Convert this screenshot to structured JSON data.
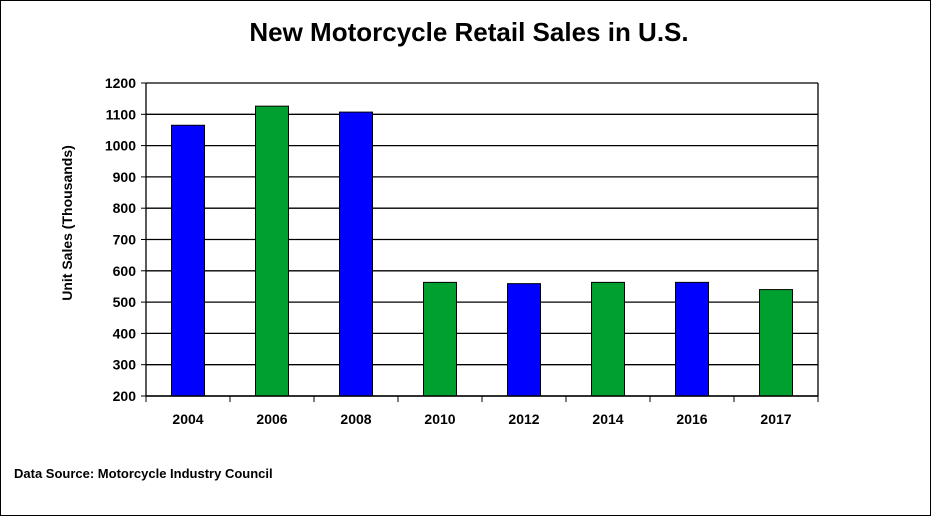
{
  "chart_data": {
    "type": "bar",
    "title": "New Motorcycle Retail Sales in U.S.",
    "xlabel": "",
    "ylabel": "Unit Sales (Thousands)",
    "categories": [
      "2004",
      "2006",
      "2008",
      "2010",
      "2012",
      "2014",
      "2016",
      "2017"
    ],
    "values": [
      1065,
      1126,
      1107,
      563,
      559,
      563,
      563,
      540
    ],
    "bar_colors": [
      "#0000FF",
      "#00A030",
      "#0000FF",
      "#00A030",
      "#0000FF",
      "#00A030",
      "#0000FF",
      "#00A030"
    ],
    "ylim": [
      200,
      1200
    ],
    "yticks": [
      200,
      300,
      400,
      500,
      600,
      700,
      800,
      900,
      1000,
      1100,
      1200
    ],
    "grid": true,
    "legend": "none",
    "source": "Data Source: Motorcycle Industry Council"
  }
}
